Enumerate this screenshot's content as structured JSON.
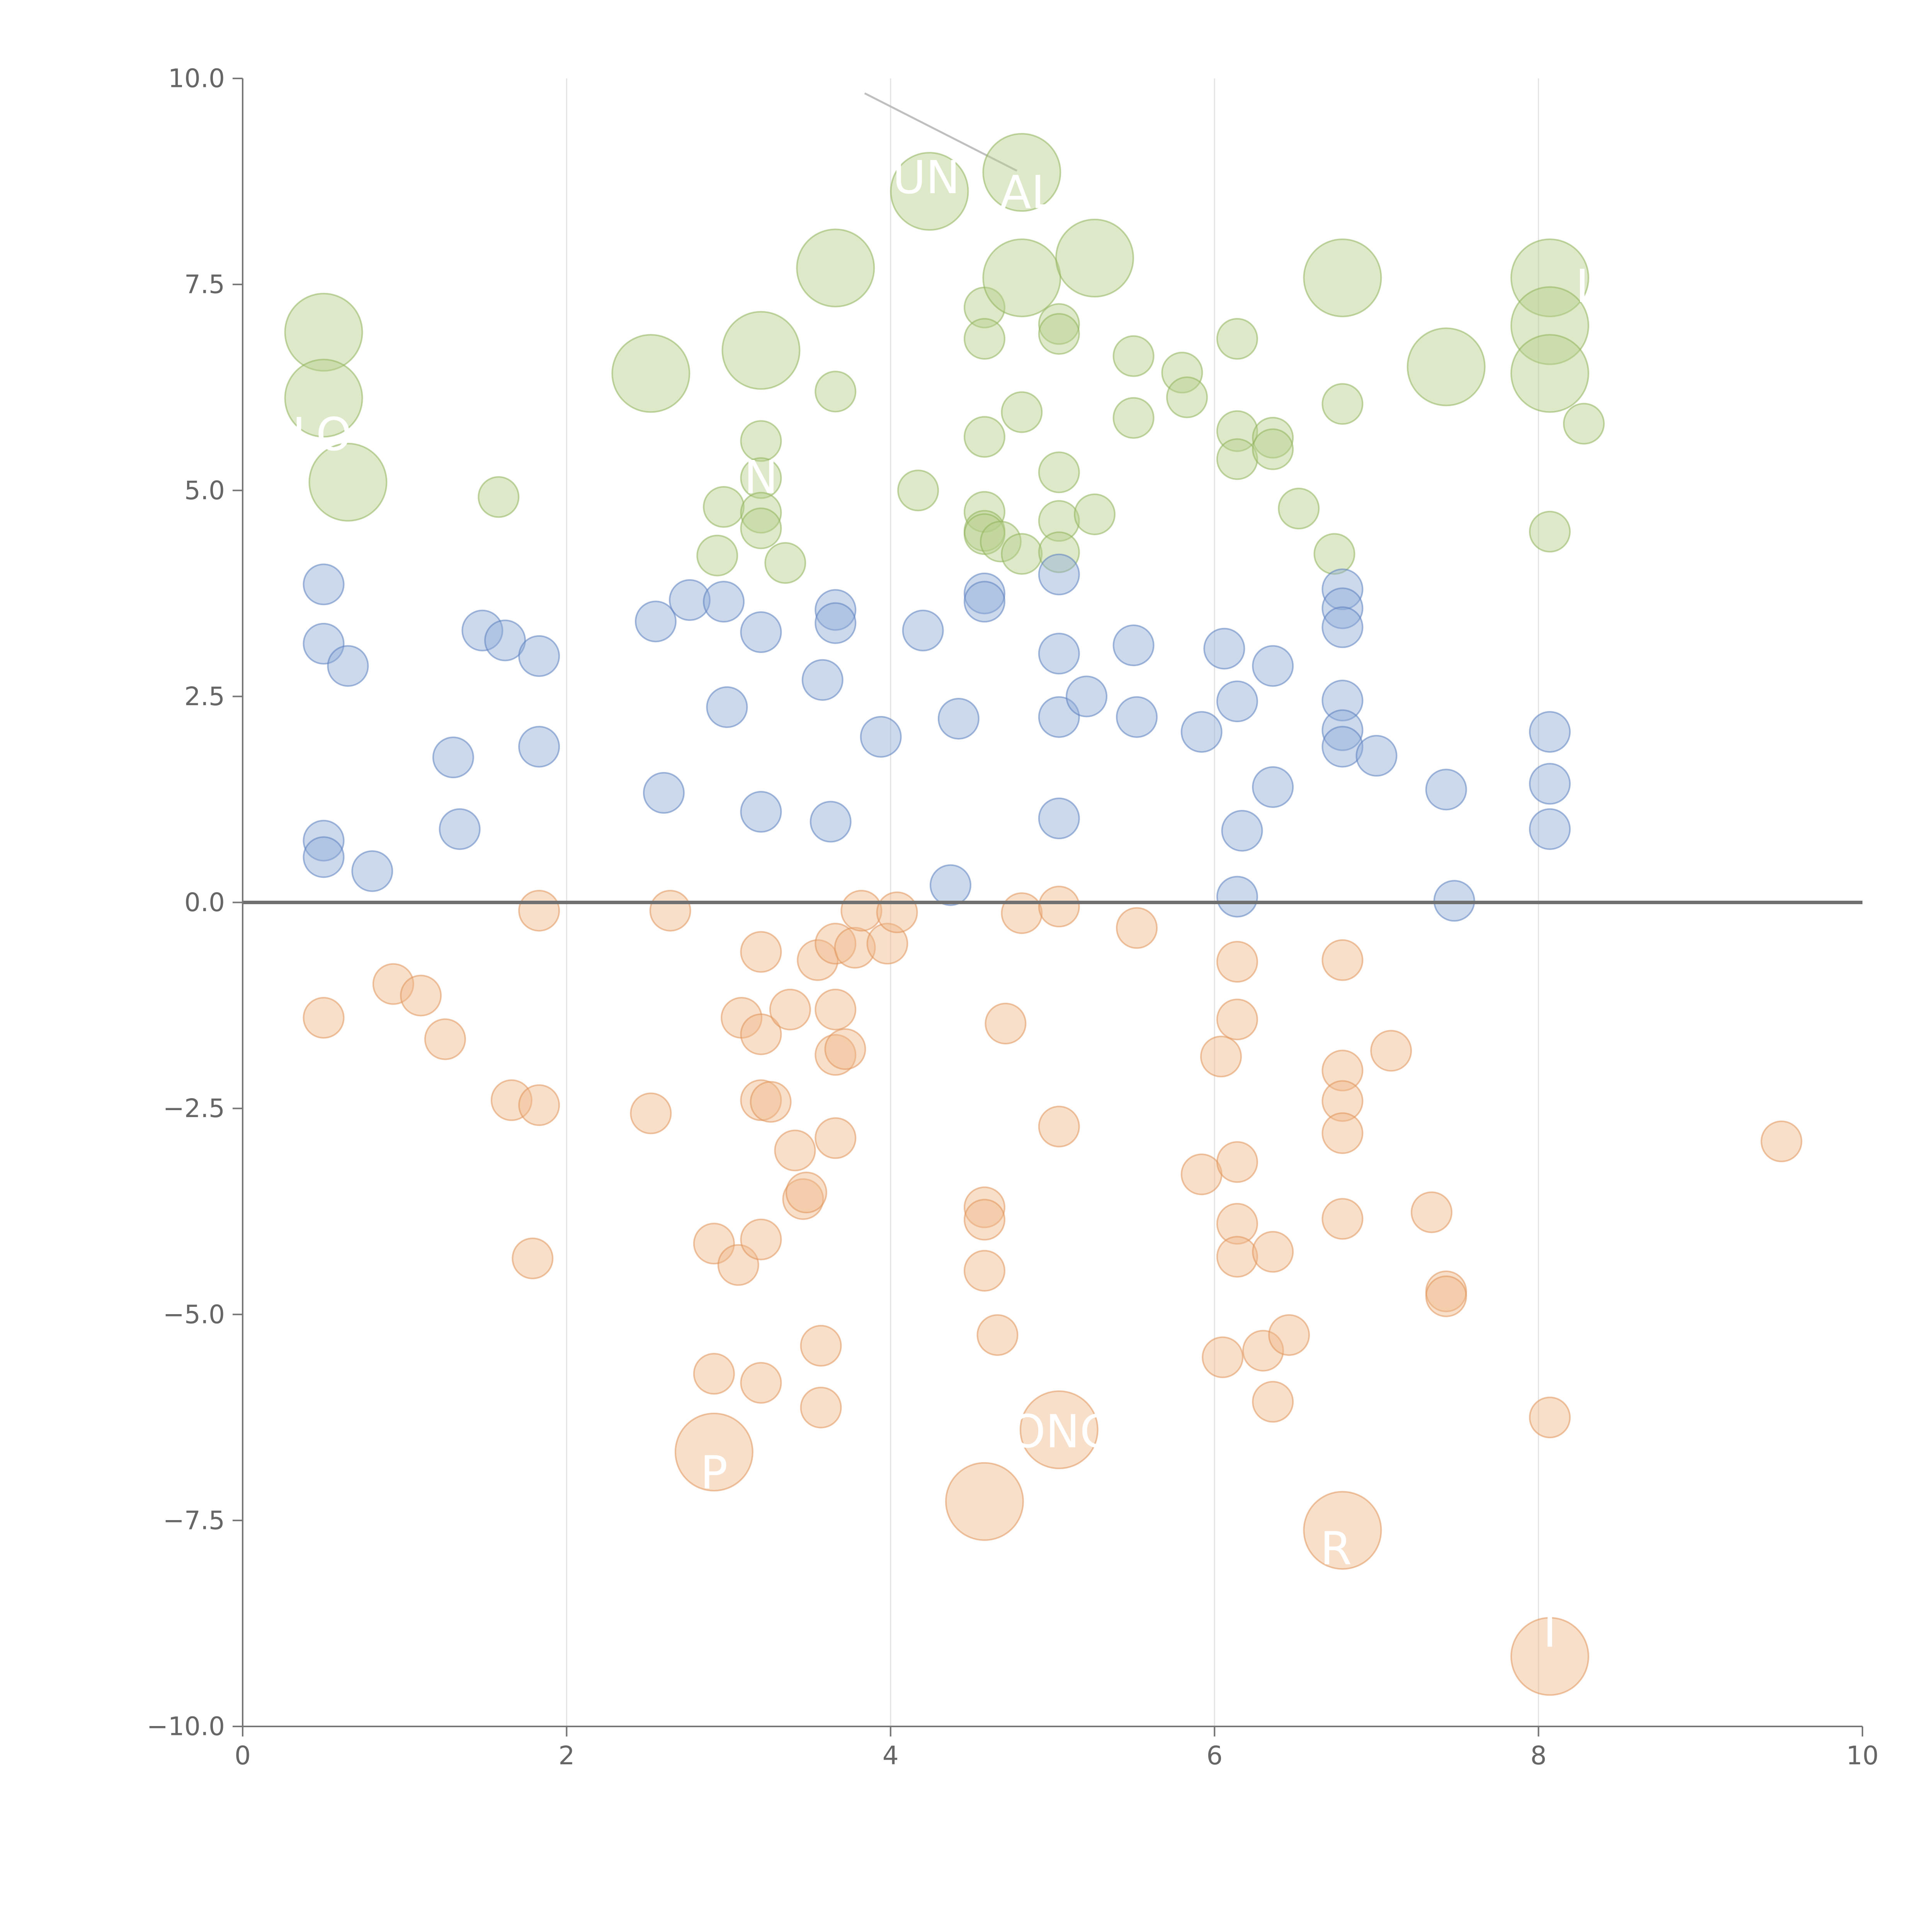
{
  "chart_data": {
    "type": "scatter",
    "title": "",
    "xlabel": "",
    "ylabel": "",
    "xlim": [
      0,
      10
    ],
    "ylim": [
      -10,
      10
    ],
    "x_ticks": [
      {
        "value": 0,
        "label": "0"
      },
      {
        "value": 2,
        "label": "2"
      },
      {
        "value": 4,
        "label": "4"
      },
      {
        "value": 6,
        "label": "6"
      },
      {
        "value": 8,
        "label": "8"
      },
      {
        "value": 10,
        "label": "10"
      }
    ],
    "y_ticks": [
      {
        "value": 10,
        "label": "10.0"
      },
      {
        "value": 7.5,
        "label": "7.5"
      },
      {
        "value": 5,
        "label": "5.0"
      },
      {
        "value": 2.5,
        "label": "2.5"
      },
      {
        "value": 0,
        "label": "0.0"
      },
      {
        "value": -2.5,
        "label": "−2.5"
      },
      {
        "value": -5,
        "label": "−5.0"
      },
      {
        "value": -7.5,
        "label": "−7.5"
      },
      {
        "value": -10,
        "label": "−10.0"
      }
    ],
    "vertical_gridlines_at": [
      2,
      4,
      6,
      8
    ],
    "horizontal_grid": false,
    "zero_line": true,
    "legend": "none",
    "marker_opacity": 0.45,
    "series": [
      {
        "color": "#b5cf8a",
        "stroke": "#8fb35a",
        "points": [
          [
            0.5,
            6.92,
            1
          ],
          [
            0.5,
            6.12,
            1
          ],
          [
            0.65,
            5.1,
            1
          ],
          [
            1.58,
            4.92,
            0
          ],
          [
            2.52,
            6.42,
            1
          ],
          [
            2.93,
            4.21,
            0
          ],
          [
            2.97,
            4.8,
            0
          ],
          [
            3.2,
            6.7,
            1
          ],
          [
            3.2,
            5.6,
            0
          ],
          [
            3.2,
            5.15,
            0
          ],
          [
            3.2,
            4.73,
            0
          ],
          [
            3.2,
            4.54,
            0
          ],
          [
            3.35,
            4.12,
            0
          ],
          [
            3.66,
            7.7,
            1
          ],
          [
            3.66,
            6.2,
            0
          ],
          [
            4.17,
            5.0,
            0
          ],
          [
            4.24,
            8.63,
            1
          ],
          [
            4.58,
            7.22,
            0
          ],
          [
            4.58,
            6.84,
            0
          ],
          [
            4.58,
            5.65,
            0
          ],
          [
            4.58,
            4.74,
            0
          ],
          [
            4.58,
            4.51,
            0
          ],
          [
            4.58,
            4.47,
            0
          ],
          [
            4.68,
            4.38,
            0
          ],
          [
            4.81,
            8.86,
            1
          ],
          [
            4.81,
            7.58,
            1
          ],
          [
            4.81,
            5.95,
            0
          ],
          [
            4.81,
            4.23,
            0
          ],
          [
            5.04,
            7.02,
            0
          ],
          [
            5.04,
            6.9,
            0
          ],
          [
            5.04,
            5.22,
            0
          ],
          [
            5.04,
            4.63,
            0
          ],
          [
            5.04,
            4.25,
            0
          ],
          [
            5.26,
            4.71,
            0
          ],
          [
            5.26,
            7.82,
            1
          ],
          [
            5.5,
            6.63,
            0
          ],
          [
            5.5,
            5.88,
            0
          ],
          [
            5.8,
            6.43,
            0
          ],
          [
            5.83,
            6.13,
            0
          ],
          [
            6.14,
            6.84,
            0
          ],
          [
            6.14,
            5.72,
            0
          ],
          [
            6.14,
            5.38,
            0
          ],
          [
            6.36,
            5.64,
            0
          ],
          [
            6.36,
            5.5,
            0
          ],
          [
            6.52,
            4.78,
            0
          ],
          [
            6.74,
            4.23,
            0
          ],
          [
            6.79,
            7.58,
            1
          ],
          [
            6.79,
            6.05,
            0
          ],
          [
            7.43,
            6.5,
            1
          ],
          [
            8.07,
            7.58,
            1
          ],
          [
            8.07,
            7.0,
            1
          ],
          [
            8.07,
            6.42,
            1
          ],
          [
            8.07,
            4.5,
            0
          ],
          [
            8.28,
            5.81,
            0
          ]
        ]
      },
      {
        "color": "#8eaad6",
        "stroke": "#5b7fbf",
        "points": [
          [
            0.5,
            3.86,
            0
          ],
          [
            0.5,
            3.14,
            0
          ],
          [
            0.5,
            0.75,
            0
          ],
          [
            0.5,
            0.55,
            0
          ],
          [
            0.65,
            2.87,
            0
          ],
          [
            0.8,
            0.38,
            0
          ],
          [
            1.3,
            1.76,
            0
          ],
          [
            1.34,
            0.89,
            0
          ],
          [
            1.48,
            3.3,
            0
          ],
          [
            1.62,
            3.18,
            0
          ],
          [
            1.83,
            2.99,
            0
          ],
          [
            1.83,
            1.89,
            0
          ],
          [
            2.55,
            3.41,
            0
          ],
          [
            2.6,
            1.33,
            0
          ],
          [
            2.76,
            3.67,
            0
          ],
          [
            2.97,
            3.65,
            0
          ],
          [
            2.99,
            2.37,
            0
          ],
          [
            3.2,
            3.28,
            0
          ],
          [
            3.2,
            1.1,
            0
          ],
          [
            3.58,
            2.7,
            0
          ],
          [
            3.63,
            0.98,
            0
          ],
          [
            3.66,
            3.55,
            0
          ],
          [
            3.66,
            3.39,
            0
          ],
          [
            3.94,
            2.01,
            0
          ],
          [
            4.2,
            3.3,
            0
          ],
          [
            4.37,
            0.21,
            0
          ],
          [
            4.42,
            2.23,
            0
          ],
          [
            4.58,
            3.75,
            0
          ],
          [
            4.58,
            3.65,
            0
          ],
          [
            5.04,
            3.98,
            0
          ],
          [
            5.04,
            3.02,
            0
          ],
          [
            5.04,
            2.25,
            0
          ],
          [
            5.04,
            1.02,
            0
          ],
          [
            5.21,
            2.5,
            0
          ],
          [
            5.5,
            3.12,
            0
          ],
          [
            5.52,
            2.25,
            0
          ],
          [
            5.92,
            2.07,
            0
          ],
          [
            6.06,
            3.08,
            0
          ],
          [
            6.14,
            2.44,
            0
          ],
          [
            6.14,
            0.07,
            0
          ],
          [
            6.17,
            0.87,
            0
          ],
          [
            6.36,
            2.87,
            0
          ],
          [
            6.36,
            1.4,
            0
          ],
          [
            6.79,
            3.8,
            0
          ],
          [
            6.79,
            3.57,
            0
          ],
          [
            6.79,
            3.34,
            0
          ],
          [
            6.79,
            2.45,
            0
          ],
          [
            6.79,
            2.09,
            0
          ],
          [
            6.79,
            1.89,
            0
          ],
          [
            7.0,
            1.78,
            0
          ],
          [
            7.43,
            1.37,
            0
          ],
          [
            7.48,
            0.02,
            0
          ],
          [
            8.07,
            2.07,
            0
          ],
          [
            8.07,
            1.44,
            0
          ],
          [
            8.07,
            0.89,
            0
          ]
        ]
      },
      {
        "color": "#f0b88a",
        "stroke": "#e0935a",
        "points": [
          [
            0.5,
            -1.4,
            0
          ],
          [
            0.93,
            -0.99,
            0
          ],
          [
            1.1,
            -1.13,
            0
          ],
          [
            1.25,
            -1.66,
            0
          ],
          [
            1.66,
            -2.4,
            0
          ],
          [
            1.79,
            -4.32,
            0
          ],
          [
            1.83,
            -0.1,
            0
          ],
          [
            1.83,
            -2.46,
            0
          ],
          [
            2.52,
            -2.56,
            0
          ],
          [
            2.64,
            -0.1,
            0
          ],
          [
            2.91,
            -5.72,
            0
          ],
          [
            2.91,
            -4.14,
            0
          ],
          [
            2.91,
            -6.67,
            1
          ],
          [
            3.06,
            -4.4,
            0
          ],
          [
            3.08,
            -1.4,
            0
          ],
          [
            3.2,
            -0.6,
            0
          ],
          [
            3.2,
            -1.6,
            0
          ],
          [
            3.2,
            -2.4,
            0
          ],
          [
            3.2,
            -4.09,
            0
          ],
          [
            3.2,
            -5.83,
            0
          ],
          [
            3.26,
            -2.42,
            0
          ],
          [
            3.38,
            -1.3,
            0
          ],
          [
            3.41,
            -3.01,
            0
          ],
          [
            3.46,
            -3.6,
            0
          ],
          [
            3.48,
            -3.52,
            0
          ],
          [
            3.55,
            -0.7,
            0
          ],
          [
            3.57,
            -5.38,
            0
          ],
          [
            3.57,
            -6.13,
            0
          ],
          [
            3.66,
            -0.5,
            0
          ],
          [
            3.66,
            -1.3,
            0
          ],
          [
            3.66,
            -1.85,
            0
          ],
          [
            3.66,
            -2.86,
            0
          ],
          [
            3.72,
            -1.78,
            0
          ],
          [
            3.78,
            -0.55,
            0
          ],
          [
            3.82,
            -0.1,
            0
          ],
          [
            3.98,
            -0.5,
            0
          ],
          [
            4.04,
            -0.12,
            0
          ],
          [
            4.58,
            -3.7,
            0
          ],
          [
            4.58,
            -3.85,
            0
          ],
          [
            4.58,
            -4.47,
            0
          ],
          [
            4.58,
            -7.27,
            1
          ],
          [
            4.66,
            -5.25,
            0
          ],
          [
            4.71,
            -1.47,
            0
          ],
          [
            4.81,
            -0.13,
            0
          ],
          [
            5.04,
            -0.05,
            0
          ],
          [
            5.04,
            -2.72,
            0
          ],
          [
            5.04,
            -6.4,
            1
          ],
          [
            5.52,
            -0.31,
            0
          ],
          [
            5.92,
            -3.3,
            0
          ],
          [
            6.04,
            -1.87,
            0
          ],
          [
            6.05,
            -5.52,
            0
          ],
          [
            6.14,
            -0.72,
            0
          ],
          [
            6.14,
            -1.42,
            0
          ],
          [
            6.14,
            -3.15,
            0
          ],
          [
            6.14,
            -3.9,
            0
          ],
          [
            6.14,
            -4.3,
            0
          ],
          [
            6.3,
            -5.44,
            0
          ],
          [
            6.36,
            -4.24,
            0
          ],
          [
            6.36,
            -6.06,
            0
          ],
          [
            6.46,
            -5.25,
            0
          ],
          [
            6.79,
            -0.7,
            0
          ],
          [
            6.79,
            -2.04,
            0
          ],
          [
            6.79,
            -2.41,
            0
          ],
          [
            6.79,
            -2.8,
            0
          ],
          [
            6.79,
            -3.84,
            0
          ],
          [
            6.79,
            -7.62,
            1
          ],
          [
            7.09,
            -1.8,
            0
          ],
          [
            7.34,
            -3.76,
            0
          ],
          [
            7.43,
            -4.72,
            0
          ],
          [
            7.43,
            -4.78,
            0
          ],
          [
            8.07,
            -6.25,
            0
          ],
          [
            8.07,
            -9.15,
            1
          ],
          [
            9.5,
            -2.9,
            0
          ]
        ]
      }
    ],
    "labels": [
      {
        "text": "UN",
        "x": 4.22,
        "y": 8.8
      },
      {
        "text": "AL",
        "x": 4.85,
        "y": 8.62
      },
      {
        "text": "LO",
        "x": 0.49,
        "y": 5.68
      },
      {
        "text": "N",
        "x": 3.2,
        "y": 5.16
      },
      {
        "text": "I",
        "x": 8.27,
        "y": 7.48
      },
      {
        "text": "ONC",
        "x": 5.05,
        "y": -6.42
      },
      {
        "text": "P",
        "x": 2.91,
        "y": -6.92
      },
      {
        "text": "R",
        "x": 6.75,
        "y": -7.84
      },
      {
        "text": "I",
        "x": 8.07,
        "y": -8.84
      }
    ],
    "leader_lines": [
      [
        3.84,
        9.82,
        4.78,
        8.88
      ],
      [
        4.81,
        7.58,
        4.95,
        7.85
      ],
      [
        5.26,
        7.82,
        5.45,
        7.7
      ],
      [
        6.79,
        7.58,
        6.95,
        7.85
      ],
      [
        8.07,
        7.58,
        8.3,
        7.7
      ],
      [
        8.07,
        7.0,
        8.25,
        6.85
      ],
      [
        8.07,
        6.42,
        8.28,
        6.0
      ],
      [
        7.43,
        6.5,
        7.43,
        6.1
      ],
      [
        0.5,
        6.92,
        0.58,
        7.2
      ],
      [
        0.5,
        6.12,
        0.56,
        5.95
      ],
      [
        0.65,
        5.1,
        0.85,
        4.95
      ],
      [
        2.52,
        6.42,
        2.25,
        6.55
      ],
      [
        3.2,
        6.7,
        3.05,
        6.4
      ],
      [
        3.66,
        7.7,
        3.35,
        7.85
      ],
      [
        4.58,
        -7.27,
        4.42,
        -7.45
      ],
      [
        6.79,
        -7.62,
        6.98,
        -7.52
      ],
      [
        8.07,
        -9.15,
        8.25,
        -9.0
      ]
    ]
  }
}
